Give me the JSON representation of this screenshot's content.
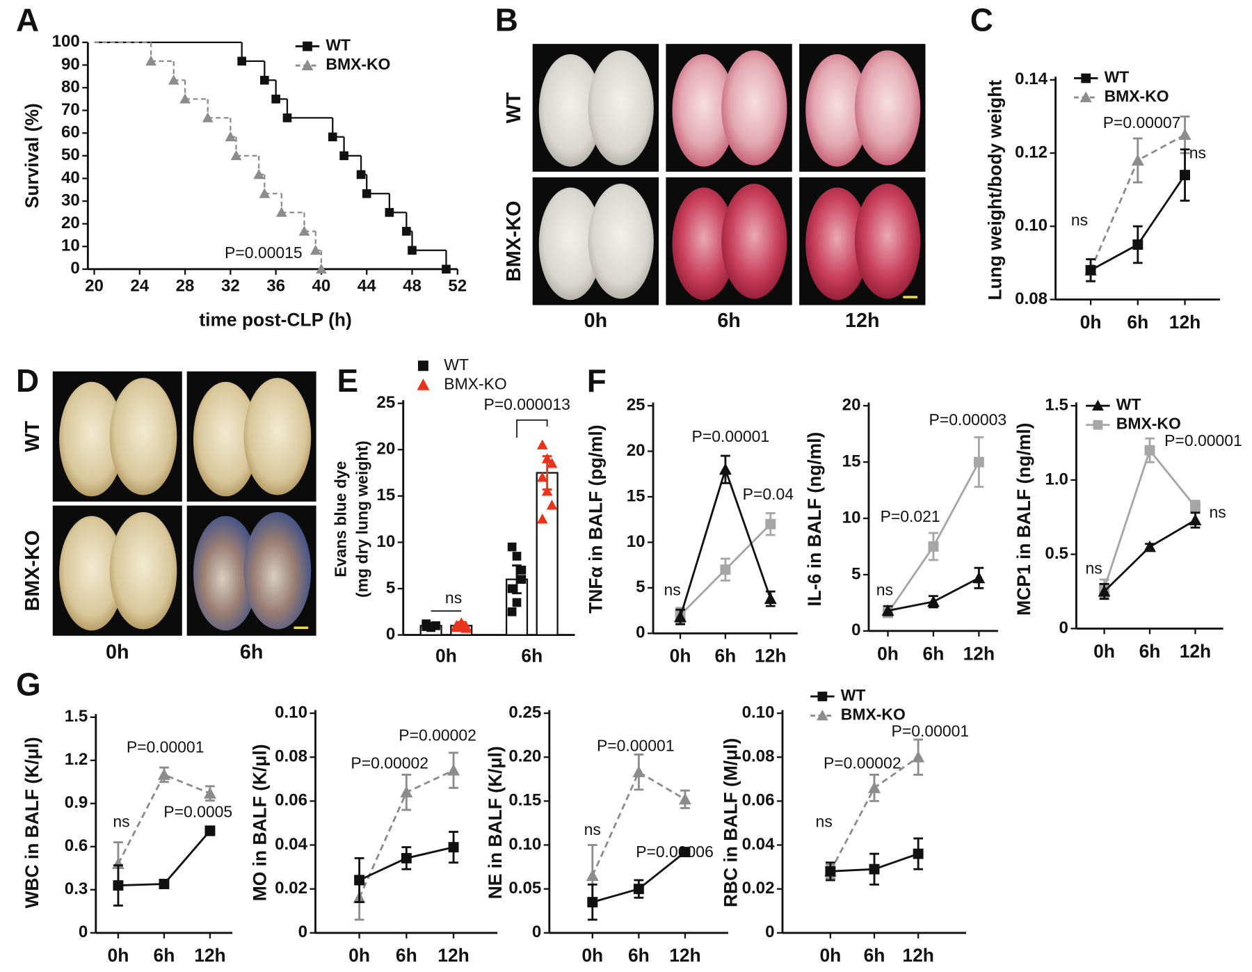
{
  "chart_data": [
    {
      "type": "step",
      "panel": "A",
      "y_label": "Survival (%)",
      "x_label": "time post-CLP (h)",
      "xlim": [
        20,
        52
      ],
      "xticks": [
        20,
        24,
        28,
        32,
        36,
        40,
        44,
        48,
        52
      ],
      "ylim": [
        0,
        100
      ],
      "yticks": [
        0,
        10,
        20,
        30,
        40,
        50,
        60,
        70,
        80,
        90,
        100
      ],
      "legend": true,
      "annotations": [
        "P=0.00015"
      ],
      "series": [
        {
          "name": "WT",
          "color": "#111111",
          "marker": "square",
          "dashed": false,
          "x": [
            20,
            33,
            35,
            36,
            37,
            41,
            42,
            43.5,
            44,
            46,
            47.5,
            48,
            51
          ],
          "values": [
            100,
            91.7,
            83.3,
            75,
            66.7,
            58.3,
            50,
            41.7,
            33.3,
            25,
            16.7,
            8.3,
            0
          ]
        },
        {
          "name": "BMX-KO",
          "color": "#8c8c8c",
          "marker": "triangle",
          "dashed": true,
          "x": [
            20,
            25,
            27,
            28,
            30,
            32,
            32.5,
            34.5,
            35,
            36.5,
            38.5,
            39.5,
            40
          ],
          "values": [
            100,
            91.7,
            83.3,
            75,
            66.7,
            58.3,
            50,
            41.7,
            33.3,
            25,
            16.7,
            8.3,
            0
          ]
        }
      ]
    },
    {
      "type": "image",
      "panel": "B",
      "row_labels": [
        "WT",
        "BMX-KO"
      ],
      "col_labels": [
        "0h",
        "6h",
        "12h"
      ]
    },
    {
      "type": "line",
      "panel": "C",
      "y_label": "Lung weight/body weight",
      "categories": [
        "0h",
        "6h",
        "12h"
      ],
      "ylim": [
        0.08,
        0.14
      ],
      "yticks": [
        0.08,
        {
          "value": 0.1,
          "label": "0.10"
        },
        0.12,
        0.14
      ],
      "legend": true,
      "annotations": [
        "P=0.00007",
        "ns",
        "ns"
      ],
      "series": [
        {
          "name": "WT",
          "color": "#111111",
          "marker": "square",
          "dashed": false,
          "values": [
            0.088,
            0.095,
            0.114
          ],
          "errors": [
            0.003,
            0.005,
            0.007
          ]
        },
        {
          "name": "BMX-KO",
          "color": "#8c8c8c",
          "marker": "triangle",
          "dashed": true,
          "values": [
            0.088,
            0.118,
            0.125
          ],
          "errors": [
            0.003,
            0.006,
            0.005
          ]
        }
      ]
    },
    {
      "type": "image",
      "panel": "D",
      "row_labels": [
        "WT",
        "BMX-KO"
      ],
      "col_labels": [
        "0h",
        "6h"
      ]
    },
    {
      "type": "bar_scatter",
      "panel": "E",
      "y_label": [
        "Evans blue dye",
        "(mg dry lung weight)"
      ],
      "categories": [
        "0h",
        "6h"
      ],
      "ylim": [
        0,
        25
      ],
      "yticks": [
        0,
        5,
        10,
        15,
        20,
        25
      ],
      "legend": true,
      "annotations": [
        "ns",
        "P=0.000013"
      ],
      "series": [
        {
          "name": "WT",
          "color": "#111111",
          "marker": "square",
          "values": [
            1,
            6
          ],
          "errors": [
            0.3,
            1.5
          ],
          "points": [
            [
              1.2,
              0.9,
              1.0,
              1.1,
              0.8,
              1.0,
              0.9
            ],
            [
              9.5,
              8.5,
              6,
              5,
              3.5,
              7,
              2.5
            ]
          ]
        },
        {
          "name": "BMX-KO",
          "color": "#e8341c",
          "marker": "triangle",
          "values": [
            1,
            17.5
          ],
          "errors": [
            0.4,
            1.8
          ],
          "points": [
            [
              0.8,
              1.2,
              0.7,
              1.0,
              1.3,
              0.9
            ],
            [
              20.5,
              19,
              18.5,
              17,
              15.5,
              14,
              12.5
            ]
          ]
        }
      ]
    },
    {
      "type": "line",
      "panel": "F",
      "y_label": "TNFα in BALF (pg/ml)",
      "categories": [
        "0h",
        "6h",
        "12h"
      ],
      "ylim": [
        0,
        25
      ],
      "yticks": [
        0,
        5,
        10,
        15,
        20,
        25
      ],
      "legend": false,
      "annotations": [
        "ns",
        "P=0.00001",
        "P=0.04"
      ],
      "series": [
        {
          "name": "WT",
          "color": "#111111",
          "marker": "triangle",
          "dashed": false,
          "values": [
            1.8,
            18,
            3.8
          ],
          "errors": [
            0.8,
            1.5,
            0.8
          ]
        },
        {
          "name": "BMX-KO",
          "color": "#a6a6a6",
          "marker": "square",
          "dashed": false,
          "values": [
            2,
            7,
            12
          ],
          "errors": [
            0.8,
            1.2,
            1.2
          ]
        }
      ]
    },
    {
      "type": "line",
      "y_label": "IL-6 in BALF (ng/ml)",
      "categories": [
        "0h",
        "6h",
        "12h"
      ],
      "ylim": [
        0,
        20
      ],
      "yticks": [
        0,
        5,
        10,
        15,
        20
      ],
      "legend": false,
      "annotations": [
        "ns",
        "P=0.021",
        "P=0.00003"
      ],
      "series": [
        {
          "name": "WT",
          "color": "#111111",
          "marker": "triangle",
          "dashed": false,
          "values": [
            1.8,
            2.6,
            4.7
          ],
          "errors": [
            0.4,
            0.5,
            0.9
          ]
        },
        {
          "name": "BMX-KO",
          "color": "#a6a6a6",
          "marker": "square",
          "dashed": false,
          "values": [
            1.6,
            7.5,
            15
          ],
          "errors": [
            0.3,
            1.2,
            2.2
          ]
        }
      ]
    },
    {
      "type": "line",
      "y_label": "MCP1 in BALF (ng/ml)",
      "categories": [
        "0h",
        "6h",
        "12h"
      ],
      "ylim": [
        0,
        1.5
      ],
      "yticks": [
        0,
        0.5,
        {
          "value": 1,
          "label": "1.0"
        },
        1.5
      ],
      "legend": true,
      "annotations": [
        "ns",
        "P=0.00001",
        "ns"
      ],
      "series": [
        {
          "name": "WT",
          "color": "#111111",
          "marker": "triangle",
          "dashed": false,
          "values": [
            0.25,
            0.55,
            0.73
          ],
          "errors": [
            0.05,
            0.02,
            0.05
          ]
        },
        {
          "name": "BMX-KO",
          "color": "#a6a6a6",
          "marker": "square",
          "dashed": false,
          "values": [
            0.27,
            1.2,
            0.82
          ],
          "errors": [
            0.06,
            0.08,
            0.04
          ]
        }
      ]
    },
    {
      "type": "line",
      "panel": "G",
      "y_label": "WBC in BALF (K/μl)",
      "categories": [
        "0h",
        "6h",
        "12h"
      ],
      "ylim": [
        0,
        1.5
      ],
      "yticks": [
        0,
        0.3,
        0.6,
        0.9,
        1.2,
        1.5
      ],
      "legend": false,
      "annotations": [
        "ns",
        "P=0.00001",
        "P=0.0005"
      ],
      "series": [
        {
          "name": "WT",
          "color": "#111111",
          "marker": "square",
          "dashed": false,
          "values": [
            0.33,
            0.34,
            0.71
          ],
          "errors": [
            0.14,
            0.02,
            0.03
          ]
        },
        {
          "name": "BMX-KO",
          "color": "#8c8c8c",
          "marker": "triangle",
          "dashed": true,
          "values": [
            0.48,
            1.1,
            0.97
          ],
          "errors": [
            0.15,
            0.05,
            0.05
          ]
        }
      ]
    },
    {
      "type": "line",
      "y_label": "MO in BALF (K/μl)",
      "categories": [
        "0h",
        "6h",
        "12h"
      ],
      "ylim": [
        0,
        0.1
      ],
      "yticks": [
        0,
        0.02,
        0.04,
        0.06,
        0.08,
        {
          "value": 0.1,
          "label": "0.10"
        }
      ],
      "legend": false,
      "annotations": [
        "P=0.00002",
        "P=0.00002"
      ],
      "series": [
        {
          "name": "WT",
          "color": "#111111",
          "marker": "square",
          "dashed": false,
          "values": [
            0.024,
            0.034,
            0.039
          ],
          "errors": [
            0.01,
            0.005,
            0.007
          ]
        },
        {
          "name": "BMX-KO",
          "color": "#8c8c8c",
          "marker": "triangle",
          "dashed": true,
          "values": [
            0.016,
            0.064,
            0.074
          ],
          "errors": [
            0.01,
            0.008,
            0.008
          ]
        }
      ]
    },
    {
      "type": "line",
      "y_label": "NE in BALF (K/μl)",
      "categories": [
        "0h",
        "6h",
        "12h"
      ],
      "ylim": [
        0,
        0.25
      ],
      "yticks": [
        0,
        0.05,
        {
          "value": 0.1,
          "label": "0.10"
        },
        0.15,
        {
          "value": 0.2,
          "label": "0.20"
        },
        0.25
      ],
      "legend": false,
      "annotations": [
        "ns",
        "P=0.00001",
        "P=0.00006"
      ],
      "series": [
        {
          "name": "WT",
          "color": "#111111",
          "marker": "square",
          "dashed": false,
          "values": [
            0.035,
            0.05,
            0.092
          ],
          "errors": [
            0.02,
            0.01,
            0.003
          ]
        },
        {
          "name": "BMX-KO",
          "color": "#8c8c8c",
          "marker": "triangle",
          "dashed": true,
          "values": [
            0.065,
            0.183,
            0.152
          ],
          "errors": [
            0.035,
            0.02,
            0.01
          ]
        }
      ]
    },
    {
      "type": "line",
      "y_label": "RBC in BALF (M/μl)",
      "categories": [
        "0h",
        "6h",
        "12h"
      ],
      "ylim": [
        0,
        0.1
      ],
      "yticks": [
        0,
        0.02,
        0.04,
        0.06,
        0.08,
        {
          "value": 0.1,
          "label": "0.10"
        }
      ],
      "legend": true,
      "annotations": [
        "ns",
        "P=0.00002",
        "P=0.00001"
      ],
      "series": [
        {
          "name": "WT",
          "color": "#111111",
          "marker": "square",
          "dashed": false,
          "values": [
            0.028,
            0.029,
            0.036
          ],
          "errors": [
            0.004,
            0.007,
            0.007
          ]
        },
        {
          "name": "BMX-KO",
          "color": "#8c8c8c",
          "marker": "triangle",
          "dashed": true,
          "values": [
            0.028,
            0.066,
            0.08
          ],
          "errors": [
            0.003,
            0.006,
            0.008
          ]
        }
      ]
    }
  ]
}
